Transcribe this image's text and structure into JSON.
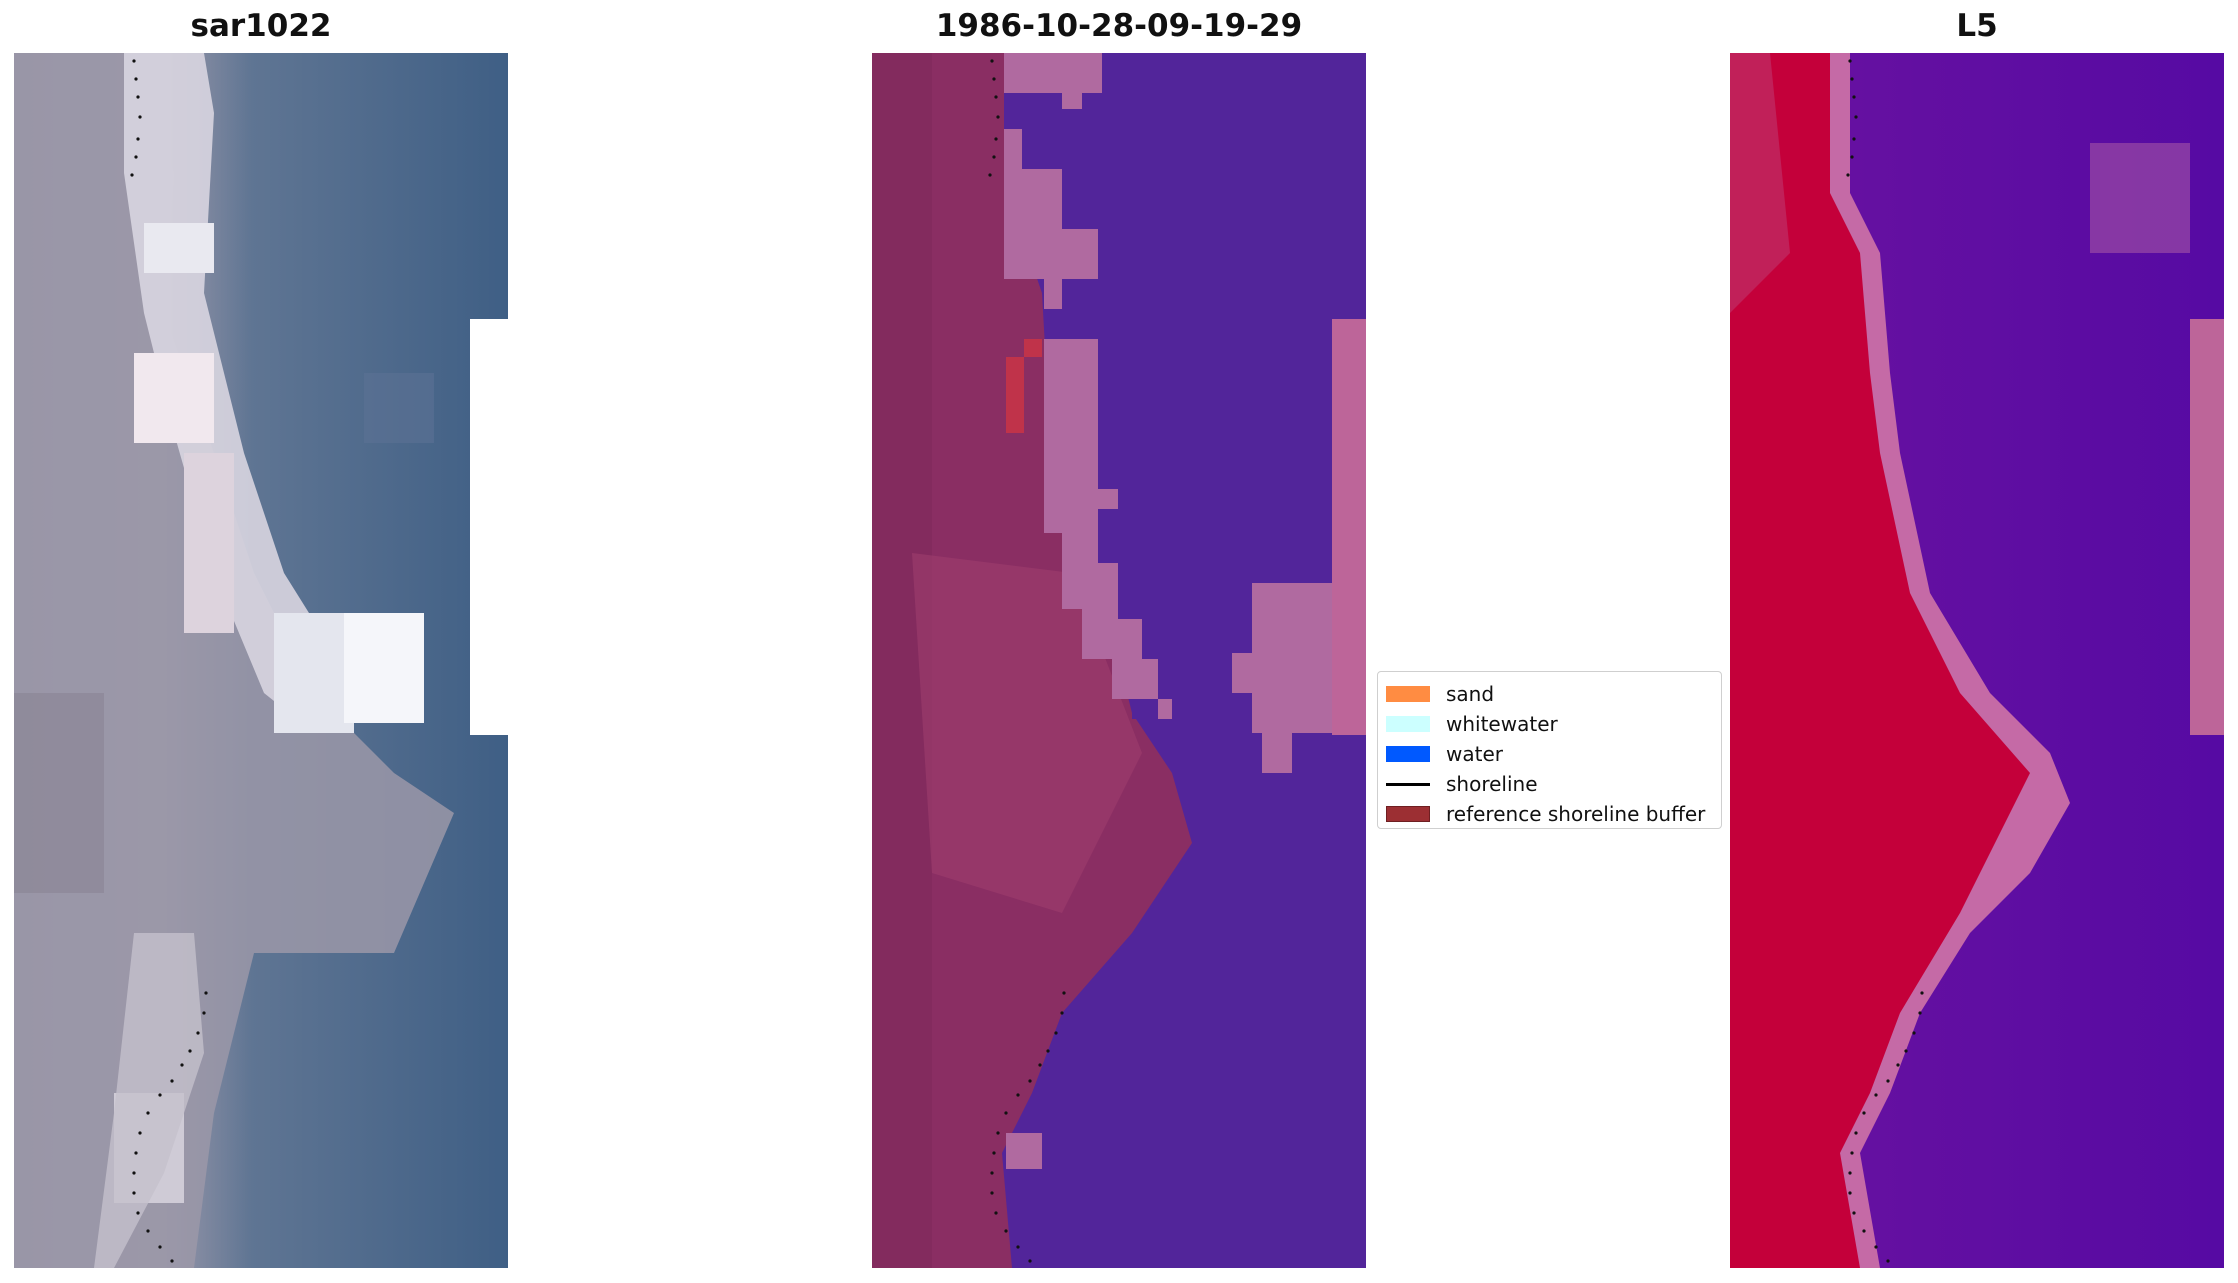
{
  "figure": {
    "panels": [
      {
        "id": "rgb",
        "title": "sar1022"
      },
      {
        "id": "classified",
        "title": "1986-10-28-09-19-29"
      },
      {
        "id": "index",
        "title": "L5"
      }
    ]
  },
  "legend": {
    "items": [
      {
        "label": "sand",
        "kind": "patch",
        "color": "#ff8c42"
      },
      {
        "label": "whitewater",
        "kind": "patch",
        "color": "#ccffff"
      },
      {
        "label": "water",
        "kind": "patch",
        "color": "#0059ff"
      },
      {
        "label": "shoreline",
        "kind": "line",
        "color": "#000000"
      },
      {
        "label": "reference shoreline buffer",
        "kind": "patch",
        "color": "#9c2f33"
      }
    ]
  },
  "colors": {
    "rgb_land": "#8f8ea3",
    "rgb_water": "#3f5f85",
    "rgb_bright": "#eef0f4",
    "class_land": "#8a2e63",
    "class_water": "#52259a",
    "class_whitewater": "#b06aa0",
    "class_buffer_red": "#c0334a",
    "index_land": "#c4003a",
    "index_water": "#5a0fa3",
    "index_edge": "#c56aa6",
    "nodata": "#ffffff"
  }
}
